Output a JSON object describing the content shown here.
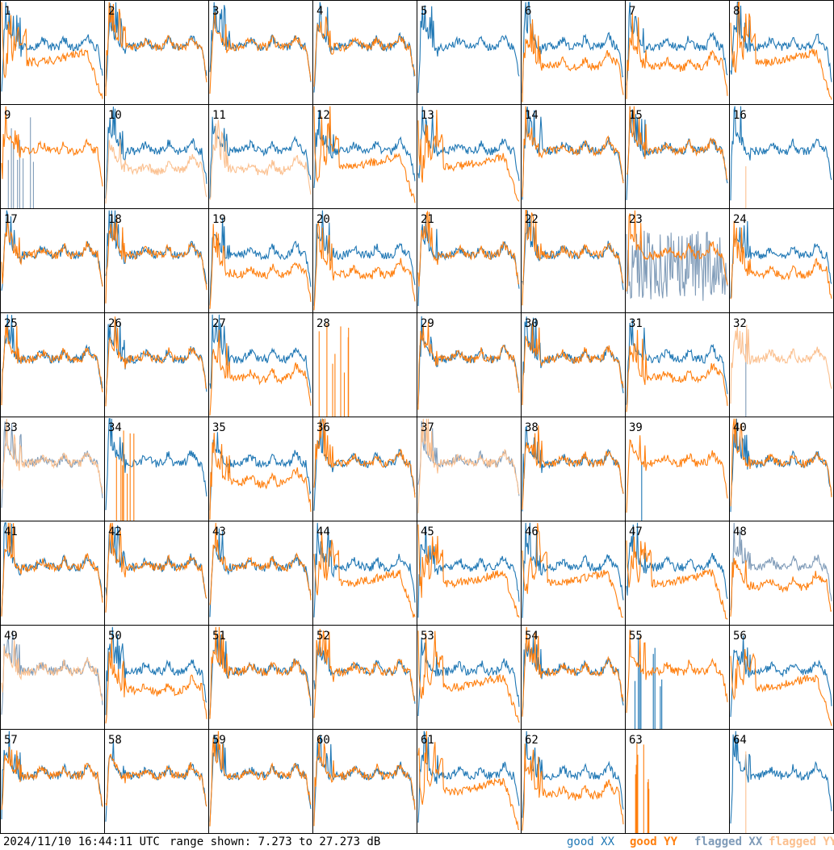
{
  "footer": {
    "timestamp": "2024/11/10 16:44:11 UTC",
    "range_text": "range shown: 7.273 to 27.273 dB"
  },
  "legend": {
    "good_xx": "good XX",
    "good_yy": "good YY",
    "flagged_xx": "flagged XX",
    "flagged_yy": "flagged YY"
  },
  "colors": {
    "good_xx": "#1f77b4",
    "good_yy": "#ff7f0e",
    "flagged_xx": "#7f9bb8",
    "flagged_yy": "#fbc08f",
    "grid": "#000000"
  },
  "chart_data": {
    "type": "line",
    "grid_rows": 8,
    "grid_cols": 8,
    "ylim_db": [
      7.273,
      27.273
    ],
    "panels": [
      {
        "id": "1",
        "profile": "lowfall",
        "xx": "good",
        "yy": "good"
      },
      {
        "id": "2",
        "profile": "normal",
        "xx": "good",
        "yy": "good"
      },
      {
        "id": "3",
        "profile": "normal",
        "xx": "good",
        "yy": "good"
      },
      {
        "id": "4",
        "profile": "normal",
        "xx": "good",
        "yy": "good"
      },
      {
        "id": "5",
        "profile": "normal",
        "xx": "good",
        "yy": "none"
      },
      {
        "id": "6",
        "profile": "split",
        "xx": "good",
        "yy": "good"
      },
      {
        "id": "7",
        "profile": "split",
        "xx": "good",
        "yy": "good"
      },
      {
        "id": "8",
        "profile": "lowfall",
        "xx": "good",
        "yy": "good"
      },
      {
        "id": "9",
        "profile": "normal",
        "xx": "flagged-spikes",
        "yy": "good"
      },
      {
        "id": "10",
        "profile": "split",
        "xx": "good",
        "yy": "flagged"
      },
      {
        "id": "11",
        "profile": "split",
        "xx": "good",
        "yy": "flagged"
      },
      {
        "id": "12",
        "profile": "lowfall",
        "xx": "good",
        "yy": "good"
      },
      {
        "id": "13",
        "profile": "lowfall",
        "xx": "good",
        "yy": "good"
      },
      {
        "id": "14",
        "profile": "normal",
        "xx": "good",
        "yy": "good"
      },
      {
        "id": "15",
        "profile": "normal",
        "xx": "good",
        "yy": "good"
      },
      {
        "id": "16",
        "profile": "normal",
        "xx": "good",
        "yy": "flagged-spike"
      },
      {
        "id": "17",
        "profile": "normal",
        "xx": "good",
        "yy": "good"
      },
      {
        "id": "18",
        "profile": "normal",
        "xx": "good",
        "yy": "good"
      },
      {
        "id": "19",
        "profile": "split",
        "xx": "good",
        "yy": "good"
      },
      {
        "id": "20",
        "profile": "split",
        "xx": "good",
        "yy": "good"
      },
      {
        "id": "21",
        "profile": "normal",
        "xx": "good",
        "yy": "good"
      },
      {
        "id": "22",
        "profile": "normal",
        "xx": "good",
        "yy": "good"
      },
      {
        "id": "23",
        "profile": "noisy",
        "xx": "flagged-noise",
        "yy": "good"
      },
      {
        "id": "24",
        "profile": "split",
        "xx": "good",
        "yy": "good"
      },
      {
        "id": "25",
        "profile": "normal",
        "xx": "good",
        "yy": "good"
      },
      {
        "id": "26",
        "profile": "normal",
        "xx": "good",
        "yy": "good"
      },
      {
        "id": "27",
        "profile": "split",
        "xx": "good",
        "yy": "good"
      },
      {
        "id": "28",
        "profile": "dead",
        "xx": "none",
        "yy": "good-spikes"
      },
      {
        "id": "29",
        "profile": "normal",
        "xx": "good",
        "yy": "good"
      },
      {
        "id": "30",
        "profile": "normal",
        "xx": "good",
        "yy": "good"
      },
      {
        "id": "31",
        "profile": "split",
        "xx": "good",
        "yy": "good"
      },
      {
        "id": "32",
        "profile": "normal",
        "xx": "flagged-spike",
        "yy": "flagged"
      },
      {
        "id": "33",
        "profile": "normal",
        "xx": "flagged",
        "yy": "flagged"
      },
      {
        "id": "34",
        "profile": "normal",
        "xx": "good",
        "yy": "good-spikes"
      },
      {
        "id": "35",
        "profile": "split",
        "xx": "good",
        "yy": "good"
      },
      {
        "id": "36",
        "profile": "normal",
        "xx": "good",
        "yy": "good"
      },
      {
        "id": "37",
        "profile": "normal",
        "xx": "flagged",
        "yy": "flagged"
      },
      {
        "id": "38",
        "profile": "normal",
        "xx": "good",
        "yy": "good"
      },
      {
        "id": "39",
        "profile": "normal",
        "xx": "good-spike",
        "yy": "good"
      },
      {
        "id": "40",
        "profile": "normal",
        "xx": "good",
        "yy": "good"
      },
      {
        "id": "41",
        "profile": "normal",
        "xx": "good",
        "yy": "good"
      },
      {
        "id": "42",
        "profile": "normal",
        "xx": "good",
        "yy": "good"
      },
      {
        "id": "43",
        "profile": "normal",
        "xx": "good",
        "yy": "good"
      },
      {
        "id": "44",
        "profile": "lowfall",
        "xx": "good",
        "yy": "good"
      },
      {
        "id": "45",
        "profile": "lowfall",
        "xx": "good",
        "yy": "good"
      },
      {
        "id": "46",
        "profile": "lowfall",
        "xx": "good",
        "yy": "good"
      },
      {
        "id": "47",
        "profile": "lowfall",
        "xx": "good",
        "yy": "good"
      },
      {
        "id": "48",
        "profile": "split",
        "xx": "flagged",
        "yy": "good"
      },
      {
        "id": "49",
        "profile": "normal",
        "xx": "flagged",
        "yy": "flagged"
      },
      {
        "id": "50",
        "profile": "split",
        "xx": "good",
        "yy": "good"
      },
      {
        "id": "51",
        "profile": "normal",
        "xx": "good",
        "yy": "good"
      },
      {
        "id": "52",
        "profile": "normal",
        "xx": "good",
        "yy": "good"
      },
      {
        "id": "53",
        "profile": "lowfall",
        "xx": "good",
        "yy": "good"
      },
      {
        "id": "54",
        "profile": "normal",
        "xx": "good",
        "yy": "good"
      },
      {
        "id": "55",
        "profile": "normal",
        "xx": "good-spikes",
        "yy": "good"
      },
      {
        "id": "56",
        "profile": "lowfall",
        "xx": "good",
        "yy": "good"
      },
      {
        "id": "57",
        "profile": "normal",
        "xx": "good",
        "yy": "good"
      },
      {
        "id": "58",
        "profile": "normal",
        "xx": "good",
        "yy": "good"
      },
      {
        "id": "59",
        "profile": "normal",
        "xx": "good",
        "yy": "good"
      },
      {
        "id": "60",
        "profile": "normal",
        "xx": "good",
        "yy": "good"
      },
      {
        "id": "61",
        "profile": "lowfall",
        "xx": "good",
        "yy": "good"
      },
      {
        "id": "62",
        "profile": "split",
        "xx": "good",
        "yy": "good"
      },
      {
        "id": "63",
        "profile": "dead",
        "xx": "none",
        "yy": "good-spikes"
      },
      {
        "id": "64",
        "profile": "normal",
        "xx": "good",
        "yy": "flagged-spike"
      }
    ]
  }
}
